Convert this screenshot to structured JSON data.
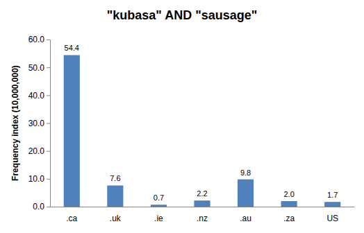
{
  "chart_data": {
    "type": "bar",
    "title": "\"kubasa\" AND \"sausage\"",
    "y_label": "Frequency index (10,000,000)",
    "categories": [
      ".ca",
      ".uk",
      ".ie",
      ".nz",
      ".au",
      ".za",
      "US"
    ],
    "values": [
      54.4,
      7.6,
      0.7,
      2.2,
      9.8,
      2.0,
      1.7
    ],
    "value_labels": [
      "54.4",
      "7.6",
      "0.7",
      "2.2",
      "9.8",
      "2.0",
      "1.7"
    ],
    "color": "#4f81bd",
    "ylim": [
      0,
      60
    ],
    "yticks": [
      {
        "value": 0,
        "label": "0.0"
      },
      {
        "value": 10,
        "label": "10.0"
      },
      {
        "value": 20,
        "label": "20.0"
      },
      {
        "value": 30,
        "label": "30.0"
      },
      {
        "value": 40,
        "label": "40.0"
      },
      {
        "value": 50,
        "label": "50.0"
      },
      {
        "value": 60,
        "label": "60.0"
      }
    ],
    "grid": false,
    "data_labels": true
  }
}
